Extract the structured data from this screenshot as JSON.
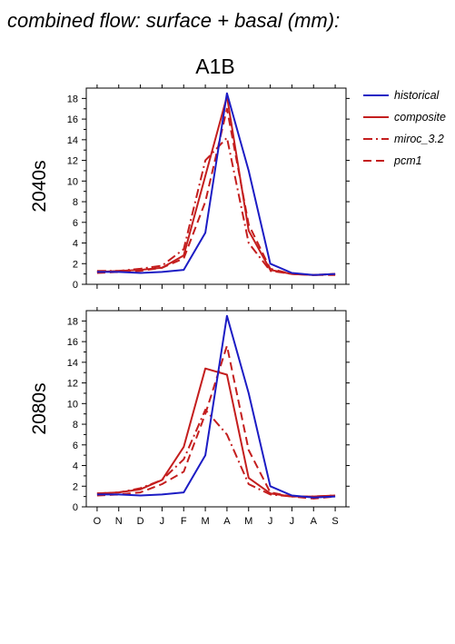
{
  "figure": {
    "title": "combined flow: surface + basal (mm):",
    "scenario": "A1B"
  },
  "legend": [
    {
      "label": "historical",
      "color": "#1c1cc4",
      "dash": "solid"
    },
    {
      "label": "composite",
      "color": "#c41e1e",
      "dash": "solid"
    },
    {
      "label": "miroc_3.2",
      "color": "#c41e1e",
      "dash": "dashdot"
    },
    {
      "label": "pcm1",
      "color": "#c41e1e",
      "dash": "dash"
    }
  ],
  "chart_data": [
    {
      "type": "line",
      "title": "2040s",
      "categories": [
        "O",
        "N",
        "D",
        "J",
        "F",
        "M",
        "A",
        "M",
        "J",
        "J",
        "A",
        "S"
      ],
      "ylim": [
        0,
        19
      ],
      "yticks": [
        0,
        2,
        4,
        6,
        8,
        10,
        12,
        14,
        16,
        18
      ],
      "grid": false,
      "series": [
        {
          "name": "historical",
          "values": [
            1.2,
            1.2,
            1.1,
            1.2,
            1.4,
            5.0,
            18.5,
            11.0,
            2.0,
            1.1,
            0.9,
            1.0
          ]
        },
        {
          "name": "composite",
          "values": [
            1.2,
            1.3,
            1.4,
            1.6,
            2.8,
            10.5,
            18.2,
            5.2,
            1.4,
            1.0,
            0.9,
            1.0
          ]
        },
        {
          "name": "miroc_3.2",
          "values": [
            1.3,
            1.3,
            1.5,
            1.8,
            3.4,
            12.0,
            14.2,
            4.0,
            1.3,
            1.0,
            0.9,
            1.0
          ]
        },
        {
          "name": "pcm1",
          "values": [
            1.1,
            1.2,
            1.3,
            1.6,
            2.5,
            8.0,
            17.0,
            5.8,
            1.5,
            1.0,
            0.9,
            0.9
          ]
        }
      ]
    },
    {
      "type": "line",
      "title": "2080s",
      "categories": [
        "O",
        "N",
        "D",
        "J",
        "F",
        "M",
        "A",
        "M",
        "J",
        "J",
        "A",
        "S"
      ],
      "ylim": [
        0,
        19
      ],
      "yticks": [
        0,
        2,
        4,
        6,
        8,
        10,
        12,
        14,
        16,
        18
      ],
      "grid": false,
      "series": [
        {
          "name": "historical",
          "values": [
            1.2,
            1.2,
            1.1,
            1.2,
            1.4,
            5.0,
            18.5,
            11.0,
            2.0,
            1.1,
            0.9,
            1.0
          ]
        },
        {
          "name": "composite",
          "values": [
            1.3,
            1.4,
            1.7,
            2.6,
            5.8,
            13.4,
            12.8,
            2.8,
            1.3,
            1.0,
            1.0,
            1.1
          ]
        },
        {
          "name": "miroc_3.2",
          "values": [
            1.3,
            1.4,
            1.8,
            2.6,
            4.6,
            9.4,
            7.0,
            2.2,
            1.2,
            1.0,
            1.0,
            1.1
          ]
        },
        {
          "name": "pcm1",
          "values": [
            1.1,
            1.2,
            1.4,
            2.2,
            3.4,
            9.0,
            15.6,
            5.5,
            1.4,
            1.0,
            0.8,
            1.0
          ]
        }
      ]
    }
  ]
}
